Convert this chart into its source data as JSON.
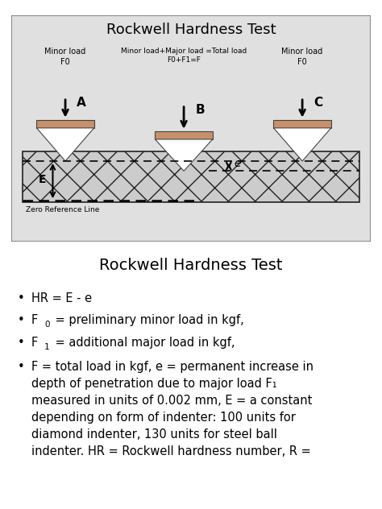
{
  "title1": "Rockwell Hardness Test",
  "title2": "Rockwell Hardness Test",
  "panel_bg": "#e0e0e0",
  "indenter_fill": "#c8906a",
  "specimen_hatch_color": "#888888",
  "label_A": "A",
  "label_B": "B",
  "label_C": "C",
  "label_E": "E",
  "label_e": "e",
  "minor_load_left": "Minor load\nF0",
  "minor_load_right": "Minor load\nF0",
  "major_load_text": "Minor load+Major load =Total load\nF0+F1=F",
  "zero_ref_text": "Zero Reference Line",
  "bullet1": "HR = E - e",
  "bullet2a": "F",
  "bullet2b": "0",
  "bullet2c": " = preliminary minor load in kgf,",
  "bullet3a": "F",
  "bullet3b": "1",
  "bullet3c": " = additional major load in kgf,",
  "bullet4": "F = total load in kgf, e = permanent increase in\ndepth of penetration due to major load F₁\nmeasured in units of 0.002 mm, E = a constant\ndepending on form of indenter: 100 units for\ndiamond indenter, 130 units for steel ball\nindenter. HR = Rockwell hardness number, R ="
}
